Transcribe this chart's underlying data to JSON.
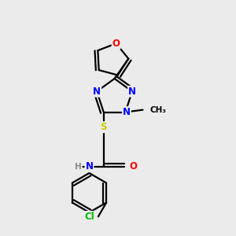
{
  "bg_color": "#ebebeb",
  "bond_color": "#000000",
  "bond_width": 1.6,
  "atom_colors": {
    "N": "#0000ff",
    "O": "#ff0000",
    "S": "#cccc00",
    "Cl": "#00bb00",
    "H": "#888888",
    "C": "#000000"
  }
}
